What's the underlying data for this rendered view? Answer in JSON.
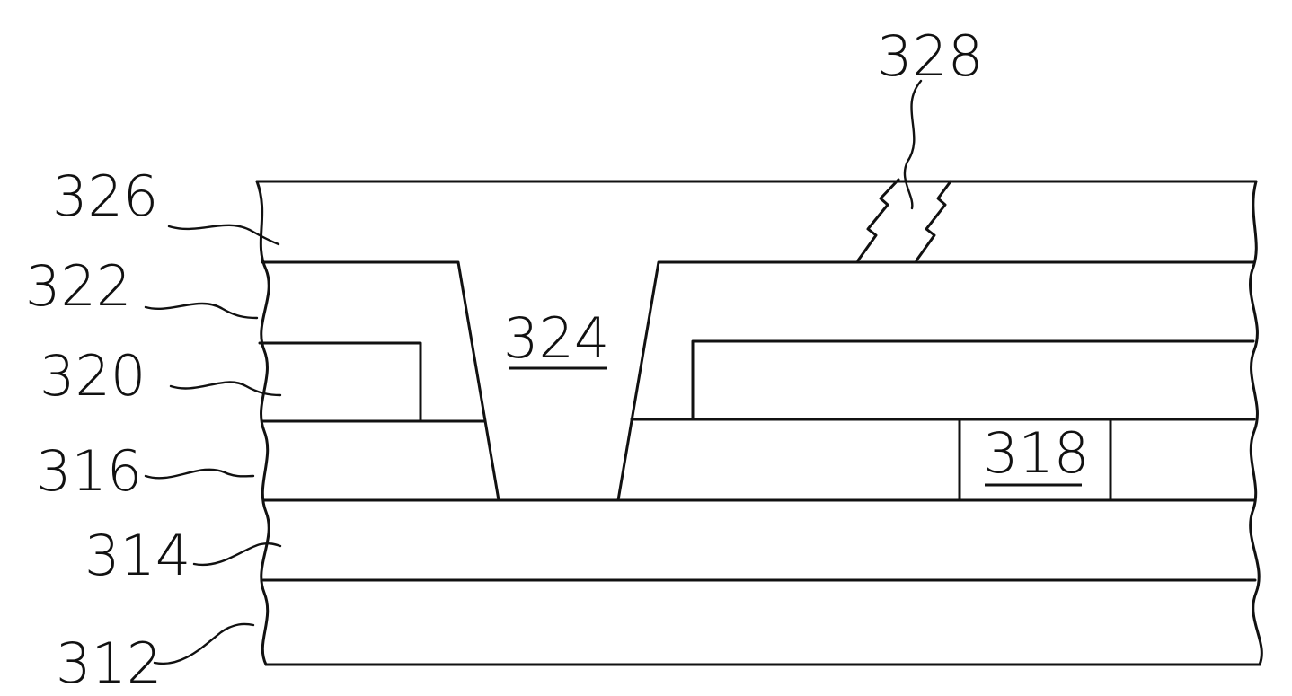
{
  "figure": {
    "labels": {
      "l312": "312",
      "l314": "314",
      "l316": "316",
      "l318": "318",
      "l320": "320",
      "l322": "322",
      "l324": "324",
      "l326": "326",
      "l328": "328"
    }
  }
}
